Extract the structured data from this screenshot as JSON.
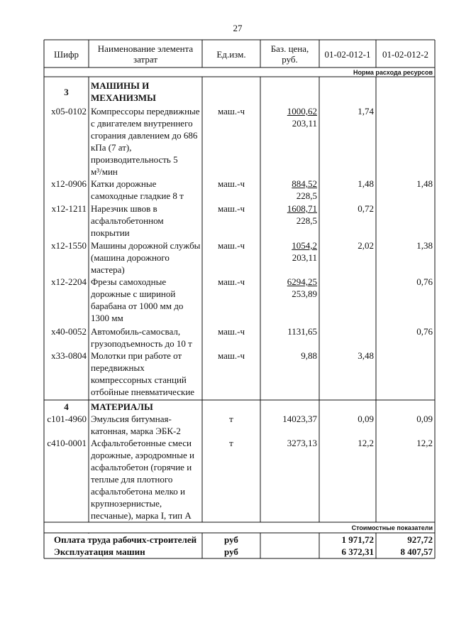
{
  "page_number": "27",
  "header": {
    "code": "Шифр",
    "name": "Наименование элемента затрат",
    "unit": "Ед.изм.",
    "base_price": "Баз. цена, руб.",
    "col1": "01-02-012-1",
    "col2": "01-02-012-2"
  },
  "norm_label": "Норма расхода ресурсов",
  "sections": [
    {
      "number": "3",
      "title": [
        "МАШИНЫ И",
        "МЕХАНИЗМЫ"
      ],
      "rows": [
        {
          "code": "х05-0102",
          "name": [
            "Компрессоры передвижные",
            "с двигателем внутреннего",
            "сгорания давлением до 686",
            "кПа (7 ат),",
            "производительность 5",
            "м³/мин"
          ],
          "unit": "маш.-ч",
          "price": "1000,62",
          "price_index": "203,11",
          "v1": "1,74",
          "v2": null
        },
        {
          "code": "х12-0906",
          "name": [
            "Катки дорожные",
            "самоходные гладкие 8 т"
          ],
          "unit": "маш.-ч",
          "price": "884,52",
          "price_index": "228,5",
          "v1": "1,48",
          "v2": "1,48"
        },
        {
          "code": "х12-1211",
          "name": [
            "Нарезчик швов в",
            "асфальтобетонном",
            "покрытии"
          ],
          "unit": "маш.-ч",
          "price": "1608,71",
          "price_index": "228,5",
          "v1": "0,72",
          "v2": null
        },
        {
          "code": "х12-1550",
          "name": [
            "Машины дорожной службы",
            "(машина дорожного",
            "мастера)"
          ],
          "unit": "маш.-ч",
          "price": "1054,2",
          "price_index": "203,11",
          "v1": "2,02",
          "v2": "1,38"
        },
        {
          "code": "х12-2204",
          "name": [
            "Фрезы самоходные",
            "дорожные с шириной",
            "барабана от 1000 мм до",
            "1300 мм"
          ],
          "unit": "маш.-ч",
          "price": "6294,25",
          "price_index": "253,89",
          "v1": null,
          "v2": "0,76"
        },
        {
          "code": "х40-0052",
          "name": [
            "Автомобиль-самосвал,",
            "грузоподъемность до 10 т"
          ],
          "unit": "маш.-ч",
          "price": "1131,65",
          "price_index": null,
          "v1": null,
          "v2": "0,76"
        },
        {
          "code": "х33-0804",
          "name": [
            "Молотки при работе от",
            "передвижных",
            "компрессорных станций",
            "отбойные пневматические"
          ],
          "unit": "маш.-ч",
          "price": "9,88",
          "price_index": null,
          "v1": "3,48",
          "v2": null
        }
      ]
    },
    {
      "number": "4",
      "title": [
        "МАТЕРИАЛЫ"
      ],
      "rows": [
        {
          "code": "с101-4960",
          "name": [
            "Эмульсия битумная-",
            "катонная, марка ЭБК-2"
          ],
          "unit": "т",
          "price": "14023,37",
          "price_index": null,
          "v1": "0,09",
          "v2": "0,09"
        },
        {
          "code": "с410-0001",
          "name": [
            "Асфальтобетонные смеси",
            "дорожные, аэродромные и",
            "асфальтобетон (горячие и",
            "теплые для плотного",
            "асфальтобетона мелко и",
            "крупнозернистые,",
            "песчаные), марка I, тип А"
          ],
          "unit": "т",
          "price": "3273,13",
          "price_index": null,
          "v1": "12,2",
          "v2": "12,2"
        }
      ]
    }
  ],
  "cost_label": "Стоимостные показатели",
  "totals": [
    {
      "name": "Оплата труда рабочих-строителей",
      "unit": "руб",
      "v1": "1 971,72",
      "v2": "927,72"
    },
    {
      "name": "Эксплуатация машин",
      "unit": "руб",
      "v1": "6 372,31",
      "v2": "8 407,57"
    }
  ]
}
